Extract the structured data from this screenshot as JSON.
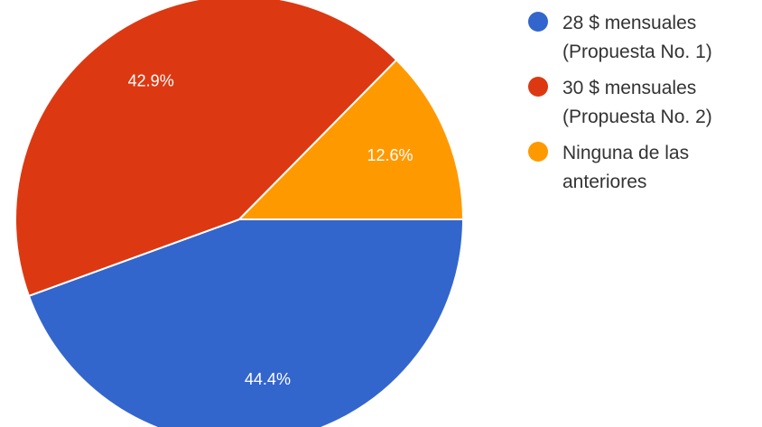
{
  "chart_data": {
    "type": "pie",
    "title": "",
    "labels": [
      "28 $ mensuales (Propuesta No. 1)",
      "30 $ mensuales (Propuesta No. 2)",
      "Ninguna de las anteriores"
    ],
    "values": [
      44.4,
      42.9,
      12.6
    ],
    "data_labels": [
      "44.4%",
      "42.9%",
      "12.6%"
    ],
    "colors": [
      "#3366cc",
      "#dc3912",
      "#ff9900"
    ],
    "legend_position": "right",
    "legend_lines": [
      [
        "28 $ mensuales",
        "(Propuesta No. 1)"
      ],
      [
        "30 $ mensuales",
        "(Propuesta No. 2)"
      ],
      [
        "Ninguna de las",
        "anteriores"
      ]
    ],
    "start_direction": "3 o'clock, clockwise"
  }
}
